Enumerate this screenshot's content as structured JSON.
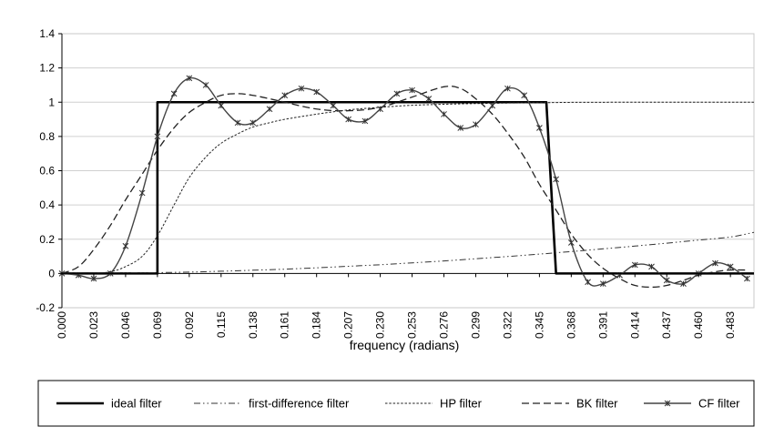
{
  "chart_data": {
    "type": "line",
    "xlabel": "frequency (radians)",
    "ylim": [
      -0.2,
      1.4
    ],
    "xlim": [
      0,
      0.5
    ],
    "yticks": [
      "-0.2",
      "0",
      "0.2",
      "0.4",
      "0.6",
      "0.8",
      "1",
      "1.2",
      "1.4"
    ],
    "xticks": [
      "0.000",
      "0.023",
      "0.046",
      "0.069",
      "0.092",
      "0.115",
      "0.138",
      "0.161",
      "0.184",
      "0.207",
      "0.230",
      "0.253",
      "0.276",
      "0.299",
      "0.322",
      "0.345",
      "0.368",
      "0.391",
      "0.414",
      "0.437",
      "0.460",
      "0.483"
    ],
    "grid": "horizontal",
    "legend_position": "bottom",
    "series": [
      {
        "name": "ideal filter",
        "style": "solid-thick",
        "x": [
          0.0,
          0.062,
          0.062,
          0.069,
          0.069,
          0.35,
          0.35,
          0.357,
          0.357,
          0.5
        ],
        "y": [
          0,
          0,
          0,
          0,
          1,
          1,
          1,
          0,
          0,
          0
        ]
      },
      {
        "name": "first-difference filter",
        "style": "dash-dot",
        "x": [
          0.0,
          0.023,
          0.046,
          0.069,
          0.092,
          0.115,
          0.138,
          0.161,
          0.184,
          0.207,
          0.23,
          0.253,
          0.276,
          0.299,
          0.322,
          0.345,
          0.368,
          0.391,
          0.414,
          0.437,
          0.46,
          0.483,
          0.5
        ],
        "y": [
          0.0,
          0.0,
          0.002,
          0.005,
          0.008,
          0.013,
          0.019,
          0.025,
          0.033,
          0.042,
          0.051,
          0.062,
          0.073,
          0.086,
          0.099,
          0.113,
          0.128,
          0.144,
          0.16,
          0.177,
          0.195,
          0.213,
          0.24
        ]
      },
      {
        "name": "HP filter",
        "style": "dotted",
        "x": [
          0.0,
          0.023,
          0.035,
          0.046,
          0.058,
          0.069,
          0.081,
          0.092,
          0.104,
          0.115,
          0.127,
          0.138,
          0.15,
          0.161,
          0.184,
          0.207,
          0.23,
          0.253,
          0.276,
          0.299,
          0.322,
          0.345,
          0.357,
          0.368,
          0.414,
          0.46,
          0.5
        ],
        "y": [
          0.0,
          0.001,
          0.01,
          0.04,
          0.1,
          0.22,
          0.4,
          0.56,
          0.68,
          0.76,
          0.815,
          0.855,
          0.88,
          0.9,
          0.93,
          0.955,
          0.97,
          0.982,
          0.988,
          0.992,
          0.995,
          0.997,
          0.998,
          0.999,
          1.0,
          1.0,
          1.0
        ]
      },
      {
        "name": "BK filter",
        "style": "dashed",
        "x": [
          0.0,
          0.012,
          0.023,
          0.035,
          0.046,
          0.058,
          0.069,
          0.081,
          0.092,
          0.104,
          0.115,
          0.127,
          0.138,
          0.15,
          0.161,
          0.184,
          0.207,
          0.23,
          0.253,
          0.276,
          0.288,
          0.299,
          0.311,
          0.322,
          0.334,
          0.345,
          0.357,
          0.368,
          0.38,
          0.391,
          0.403,
          0.414,
          0.426,
          0.437,
          0.449,
          0.46,
          0.472,
          0.483,
          0.495
        ],
        "y": [
          0.0,
          0.04,
          0.14,
          0.28,
          0.43,
          0.58,
          0.72,
          0.85,
          0.94,
          1.0,
          1.04,
          1.05,
          1.04,
          1.02,
          1.0,
          0.96,
          0.95,
          0.97,
          1.03,
          1.09,
          1.08,
          1.02,
          0.93,
          0.82,
          0.68,
          0.52,
          0.37,
          0.23,
          0.11,
          0.03,
          -0.03,
          -0.07,
          -0.08,
          -0.07,
          -0.04,
          -0.01,
          0.01,
          0.02,
          0.02
        ]
      },
      {
        "name": "CF filter",
        "style": "solid-marker",
        "x": [
          0.0,
          0.012,
          0.023,
          0.035,
          0.046,
          0.058,
          0.069,
          0.081,
          0.092,
          0.104,
          0.115,
          0.127,
          0.138,
          0.15,
          0.161,
          0.173,
          0.184,
          0.196,
          0.207,
          0.219,
          0.23,
          0.242,
          0.253,
          0.265,
          0.276,
          0.288,
          0.299,
          0.311,
          0.322,
          0.334,
          0.345,
          0.357,
          0.368,
          0.38,
          0.391,
          0.403,
          0.414,
          0.426,
          0.437,
          0.449,
          0.46,
          0.472,
          0.483,
          0.495
        ],
        "y": [
          0.0,
          -0.01,
          -0.03,
          0.0,
          0.16,
          0.47,
          0.8,
          1.05,
          1.14,
          1.1,
          0.98,
          0.88,
          0.88,
          0.96,
          1.04,
          1.08,
          1.06,
          0.98,
          0.9,
          0.89,
          0.96,
          1.05,
          1.07,
          1.02,
          0.93,
          0.85,
          0.87,
          0.98,
          1.08,
          1.04,
          0.85,
          0.55,
          0.18,
          -0.05,
          -0.06,
          -0.01,
          0.05,
          0.04,
          -0.04,
          -0.06,
          0.0,
          0.06,
          0.04,
          -0.03
        ]
      }
    ]
  }
}
